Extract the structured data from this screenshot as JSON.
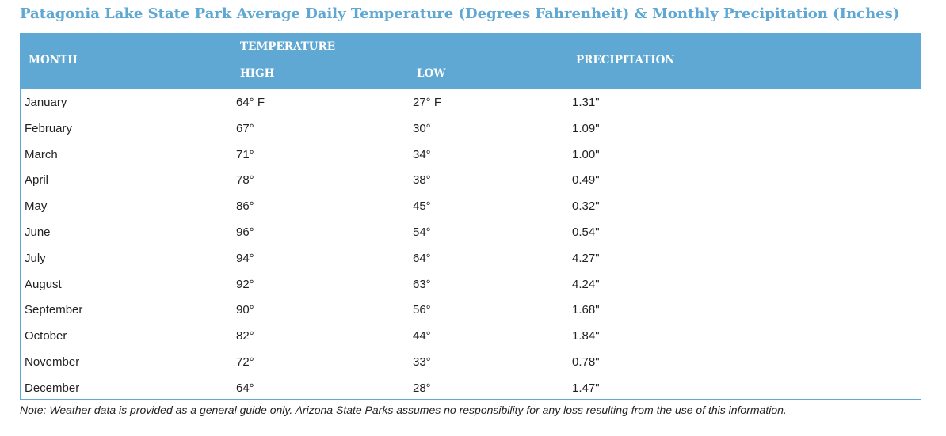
{
  "title": "Patagonia Lake State Park Average Daily Temperature (Degrees Fahrenheit) & Monthly Precipitation (Inches)",
  "headers": {
    "month": "MONTH",
    "temperature": "TEMPERATURE",
    "high": "HIGH",
    "low": "LOW",
    "precipitation": "PRECIPITATION"
  },
  "rows": [
    {
      "month": "January",
      "high": "64° F",
      "low": "27° F",
      "precip": "1.31\""
    },
    {
      "month": "February",
      "high": "67°",
      "low": "30°",
      "precip": "1.09\""
    },
    {
      "month": "March",
      "high": "71°",
      "low": "34°",
      "precip": "1.00\""
    },
    {
      "month": "April",
      "high": "78°",
      "low": "38°",
      "precip": "0.49\""
    },
    {
      "month": "May",
      "high": "86°",
      "low": "45°",
      "precip": "0.32\""
    },
    {
      "month": "June",
      "high": "96°",
      "low": "54°",
      "precip": "0.54\""
    },
    {
      "month": "July",
      "high": "94°",
      "low": "64°",
      "precip": "4.27\""
    },
    {
      "month": "August",
      "high": "92°",
      "low": "63°",
      "precip": "4.24\""
    },
    {
      "month": "September",
      "high": "90°",
      "low": "56°",
      "precip": "1.68\""
    },
    {
      "month": "October",
      "high": "82°",
      "low": "44°",
      "precip": "1.84\""
    },
    {
      "month": "November",
      "high": "72°",
      "low": "33°",
      "precip": "0.78\""
    },
    {
      "month": "December",
      "high": "64°",
      "low": "28°",
      "precip": "1.47\""
    }
  ],
  "note": "Note: Weather data is provided as a general guide only. Arizona State Parks assumes no responsibility for any loss resulting from the use of this information.",
  "colors": {
    "accent": "#5fa8d3",
    "text": "#222222"
  }
}
